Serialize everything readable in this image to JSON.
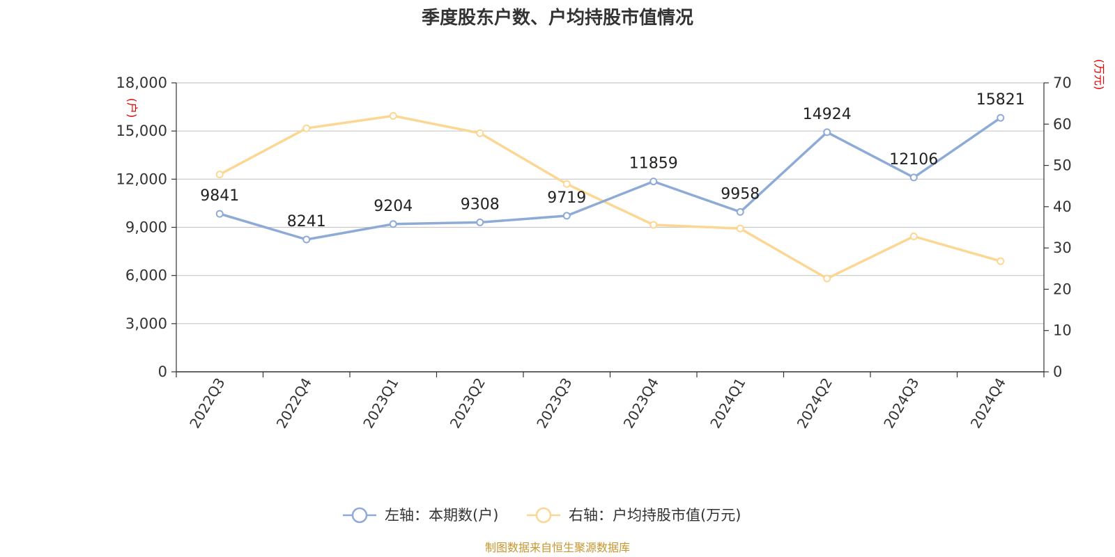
{
  "chart_data": {
    "type": "line",
    "title": "季度股东户数、户均持股市值情况",
    "categories": [
      "2022Q3",
      "2022Q4",
      "2023Q1",
      "2023Q2",
      "2023Q3",
      "2023Q4",
      "2024Q1",
      "2024Q2",
      "2024Q3",
      "2024Q4"
    ],
    "left_axis": {
      "unit": "(户)",
      "ylim": [
        0,
        18000
      ],
      "ticks": [
        0,
        3000,
        6000,
        9000,
        12000,
        15000,
        18000
      ],
      "tick_labels": [
        "0",
        "3,000",
        "6,000",
        "9,000",
        "12,000",
        "15,000",
        "18,000"
      ]
    },
    "right_axis": {
      "unit": "(万元)",
      "ylim": [
        0,
        70
      ],
      "ticks": [
        0,
        10,
        20,
        30,
        40,
        50,
        60,
        70
      ],
      "tick_labels": [
        "0",
        "10",
        "20",
        "30",
        "40",
        "50",
        "60",
        "70"
      ]
    },
    "series": [
      {
        "name": "左轴：本期数(户)",
        "axis": "left",
        "color": "#8eabd8",
        "values": [
          9841,
          8241,
          9204,
          9308,
          9719,
          11859,
          9958,
          14924,
          12106,
          15821
        ],
        "labels": [
          "9841",
          "8241",
          "9204",
          "9308",
          "9719",
          "11859",
          "9958",
          "14924",
          "12106",
          "15821"
        ]
      },
      {
        "name": "右轴：户均持股市值(万元)",
        "axis": "right",
        "color": "#fcd794",
        "values": [
          47.8,
          59.0,
          62.0,
          57.8,
          45.5,
          35.6,
          34.7,
          22.6,
          32.8,
          26.8
        ]
      }
    ],
    "grid": true,
    "legend_position": "bottom-center",
    "source": "制图数据来自恒生聚源数据库"
  }
}
